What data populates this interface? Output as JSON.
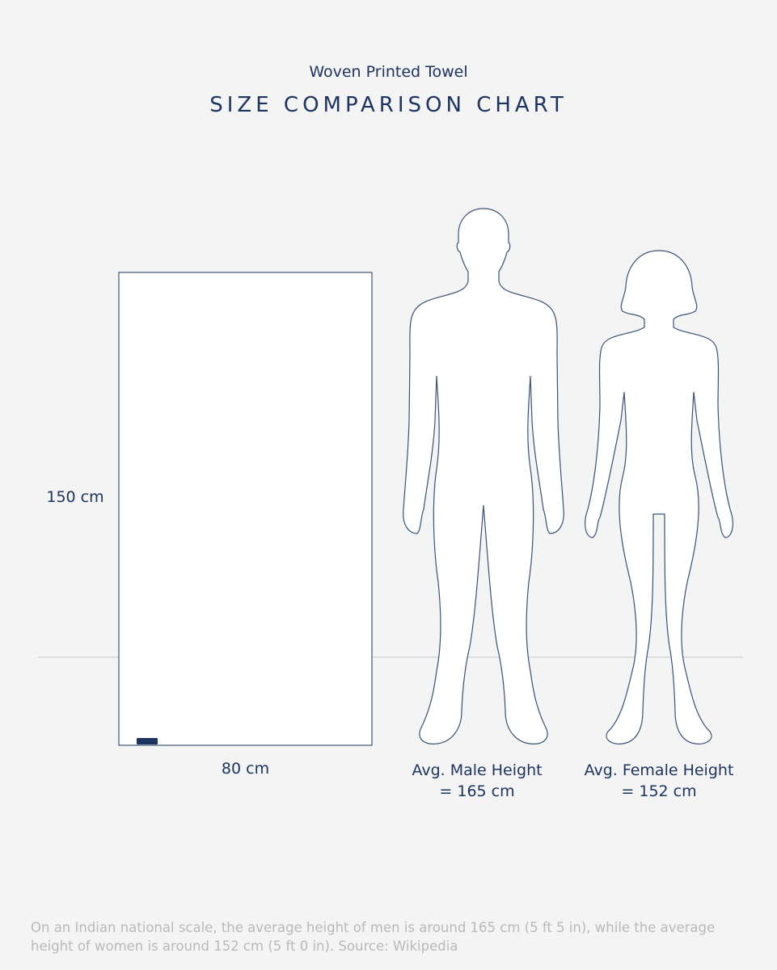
{
  "header": {
    "subtitle": "Woven Printed Towel",
    "title": "SIZE COMPARISON CHART"
  },
  "towel": {
    "height_label": "150 cm",
    "width_label": "80 cm",
    "height_cm": 150,
    "width_cm": 80,
    "tag_logo": "brand tag"
  },
  "figures": [
    {
      "label_line1": "Avg. Male Height",
      "label_line2": "= 165 cm",
      "height_cm": 165
    },
    {
      "label_line1": "Avg. Female Height",
      "label_line2": "= 152 cm",
      "height_cm": 152
    }
  ],
  "footer": {
    "note": "On an Indian national scale, the average height of men is around 165 cm (5 ft 5 in), while the average height of women is around 152 cm (5 ft 0 in). Source: Wikipedia"
  },
  "colors": {
    "outline": "#1d3461",
    "background": "#f4f4f4",
    "fill": "#ffffff",
    "footer_text": "#b9b9b9"
  }
}
